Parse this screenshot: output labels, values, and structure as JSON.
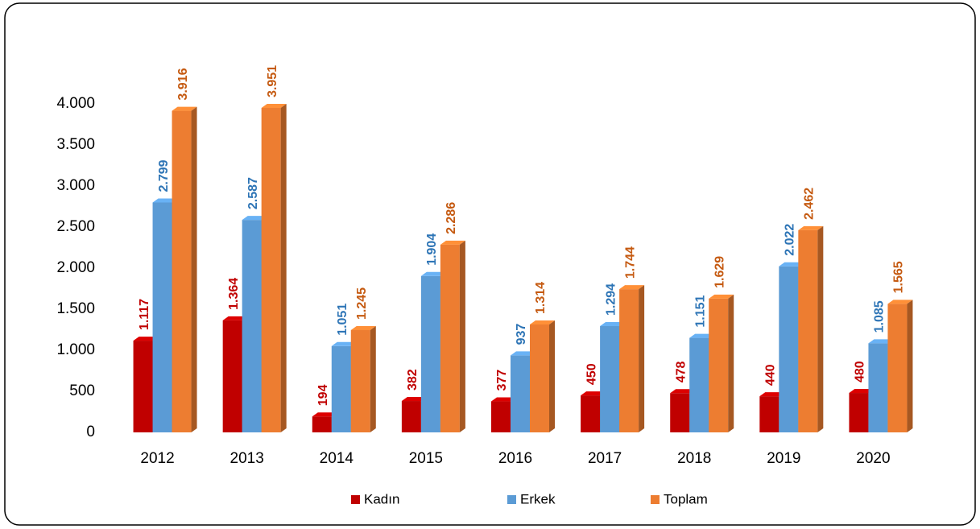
{
  "chart_data": {
    "type": "bar3d",
    "categories": [
      "2012",
      "2013",
      "2014",
      "2015",
      "2016",
      "2017",
      "2018",
      "2019",
      "2020"
    ],
    "series": [
      {
        "name": "Kadın",
        "color": "#c00000",
        "label_color": "#c00000",
        "values": [
          1117,
          1364,
          194,
          382,
          377,
          450,
          478,
          440,
          480
        ],
        "value_labels": [
          "1.117",
          "1.364",
          "194",
          "382",
          "377",
          "450",
          "478",
          "440",
          "480"
        ]
      },
      {
        "name": "Erkek",
        "color": "#5b9bd5",
        "label_color": "#2e75b6",
        "values": [
          2799,
          2587,
          1051,
          1904,
          937,
          1294,
          1151,
          2022,
          1085
        ],
        "value_labels": [
          "2.799",
          "2.587",
          "1.051",
          "1.904",
          "937",
          "1.294",
          "1.151",
          "2.022",
          "1.085"
        ]
      },
      {
        "name": "Toplam",
        "color": "#ed7d31",
        "label_color": "#c55a11",
        "values": [
          3916,
          3951,
          1245,
          2286,
          1314,
          1744,
          1629,
          2462,
          1565
        ],
        "value_labels": [
          "3.916",
          "3.951",
          "1.245",
          "2.286",
          "1.314",
          "1.744",
          "1.629",
          "2.462",
          "1.565"
        ]
      }
    ],
    "ylim": [
      0,
      4000
    ],
    "yticks": [
      0,
      500,
      {
        "value": 1000,
        "label": "1.000"
      },
      {
        "value": 1500,
        "label": "1.500"
      },
      {
        "value": 2000,
        "label": "2.000"
      },
      {
        "value": 2500,
        "label": "2.500"
      },
      {
        "value": 3000,
        "label": "3.000"
      },
      {
        "value": 3500,
        "label": "3.500"
      },
      {
        "value": 4000,
        "label": "4.000"
      }
    ],
    "grid": false,
    "legend": "bottom"
  }
}
